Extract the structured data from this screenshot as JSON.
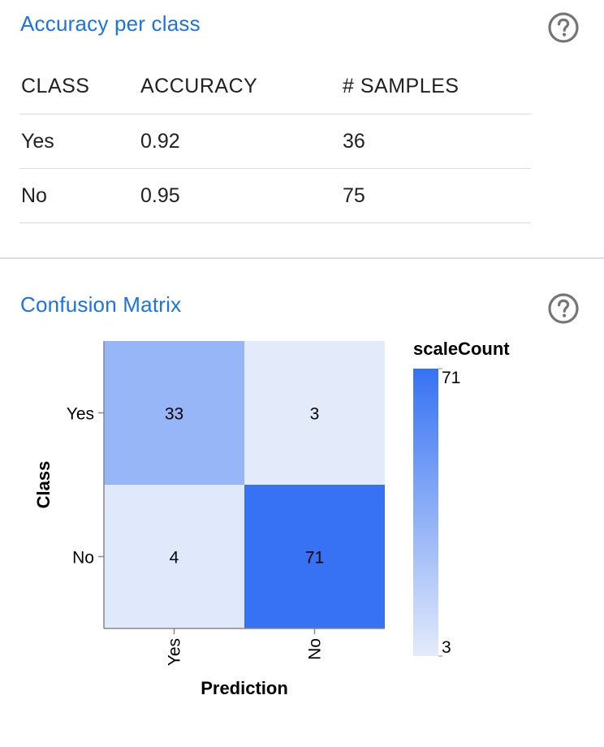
{
  "accuracy_section": {
    "title": "Accuracy per class",
    "headers": {
      "class": "CLASS",
      "accuracy": "ACCURACY",
      "samples": "# SAMPLES"
    },
    "rows": [
      {
        "class": "Yes",
        "accuracy": "0.92",
        "samples": "36"
      },
      {
        "class": "No",
        "accuracy": "0.95",
        "samples": "75"
      }
    ]
  },
  "confusion_section": {
    "title": "Confusion Matrix"
  },
  "chart_data": {
    "type": "heatmap",
    "title": "",
    "xlabel": "Prediction",
    "ylabel": "Class",
    "x_categories": [
      "Yes",
      "No"
    ],
    "y_categories": [
      "Yes",
      "No"
    ],
    "values": [
      [
        33,
        3
      ],
      [
        4,
        71
      ]
    ],
    "legend": {
      "title": "scaleCount",
      "min": 3,
      "max": 71,
      "placement": "right"
    },
    "colors": {
      "low": "#e3ebfb",
      "high": "#3672f3"
    }
  }
}
